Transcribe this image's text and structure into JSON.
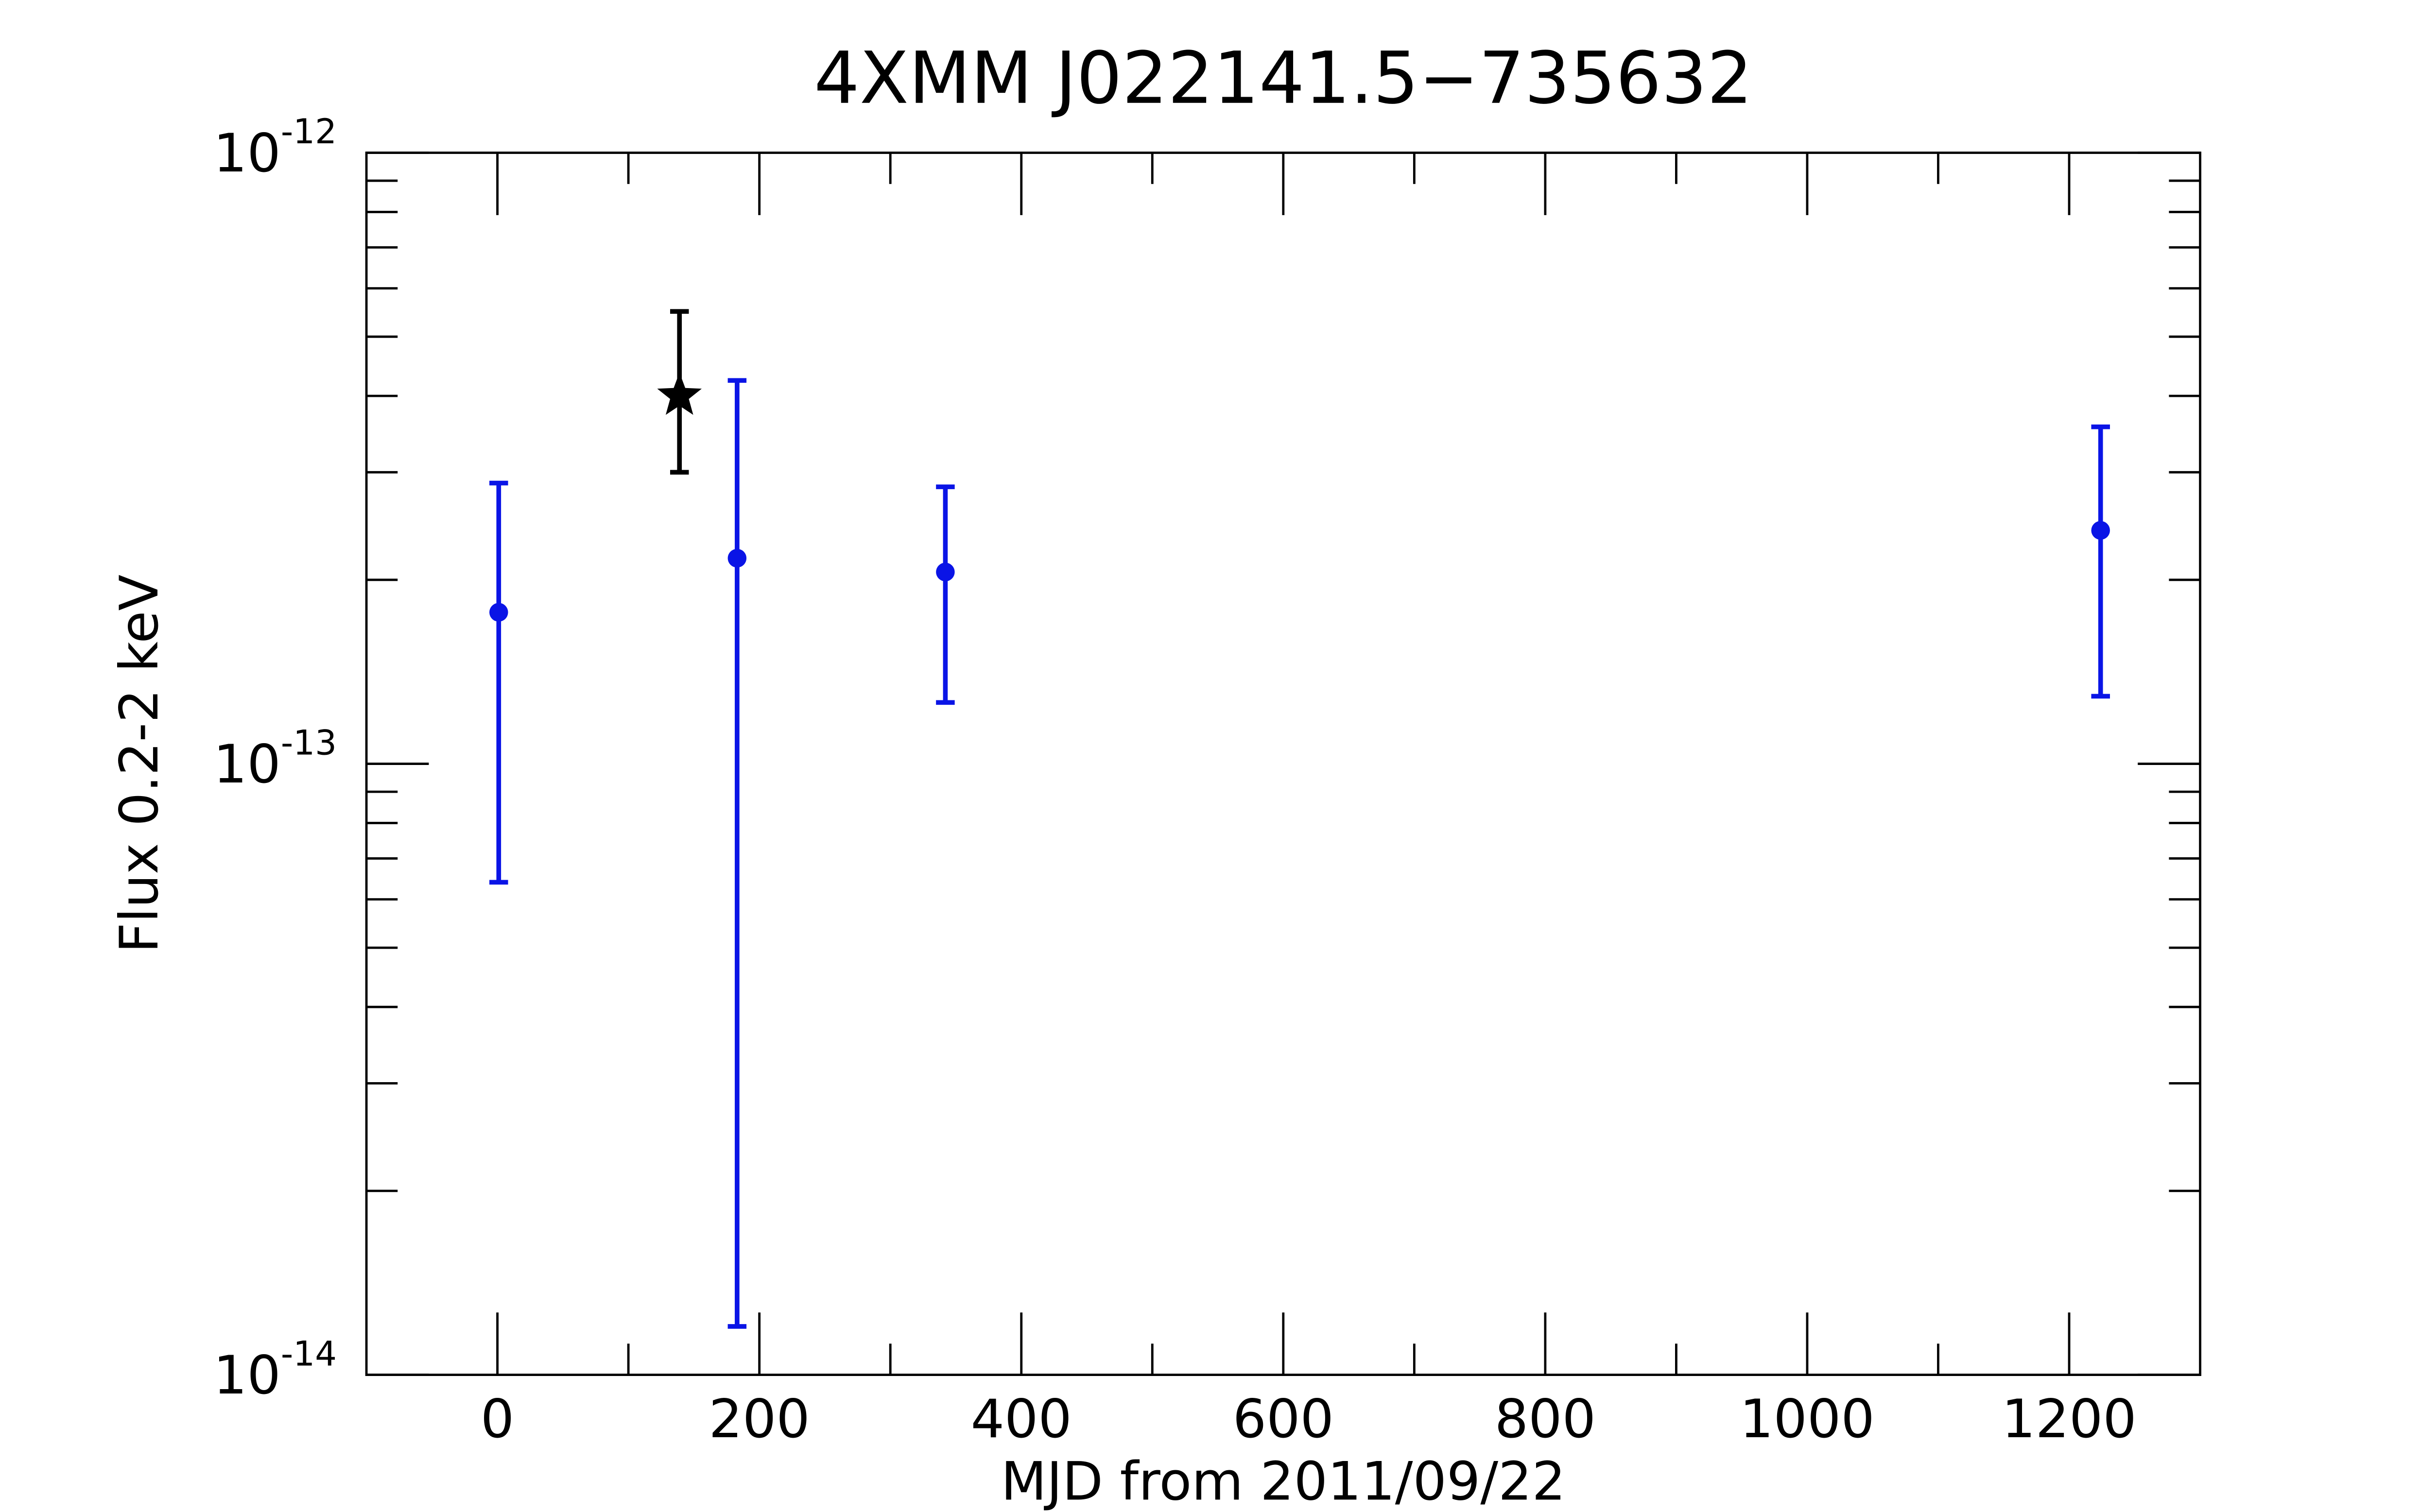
{
  "chart_data": {
    "type": "errorbar",
    "title": "4XMM J022141.5−735632",
    "xlabel": "MJD from 2011/09/22",
    "ylabel": "Flux 0.2-2 keV",
    "xlim": [
      -100,
      1300
    ],
    "xticks": [
      0,
      200,
      400,
      600,
      800,
      1000,
      1200
    ],
    "ylim": [
      1e-14,
      1e-12
    ],
    "yscale": "log",
    "yticks": [
      {
        "value": 1e-14,
        "label": "10-14"
      },
      {
        "value": 1e-13,
        "label": "10-13"
      },
      {
        "value": 1e-12,
        "label": "10-12"
      }
    ],
    "series": [
      {
        "color": "#0a14e6",
        "marker": "circle",
        "x": [
          1,
          183,
          342,
          1224
        ],
        "values": [
          1.77e-13,
          2.17e-13,
          2.06e-13,
          2.41e-13
        ],
        "ylow": [
          6.4e-14,
          1.2e-14,
          1.26e-13,
          1.29e-13
        ],
        "yhigh": [
          2.88e-13,
          4.24e-13,
          2.84e-13,
          3.56e-13
        ]
      },
      {
        "color": "#000000",
        "marker": "star",
        "x": [
          139
        ],
        "values": [
          4e-13
        ],
        "ylow": [
          3e-13
        ],
        "yhigh": [
          5.5e-13
        ]
      }
    ]
  }
}
